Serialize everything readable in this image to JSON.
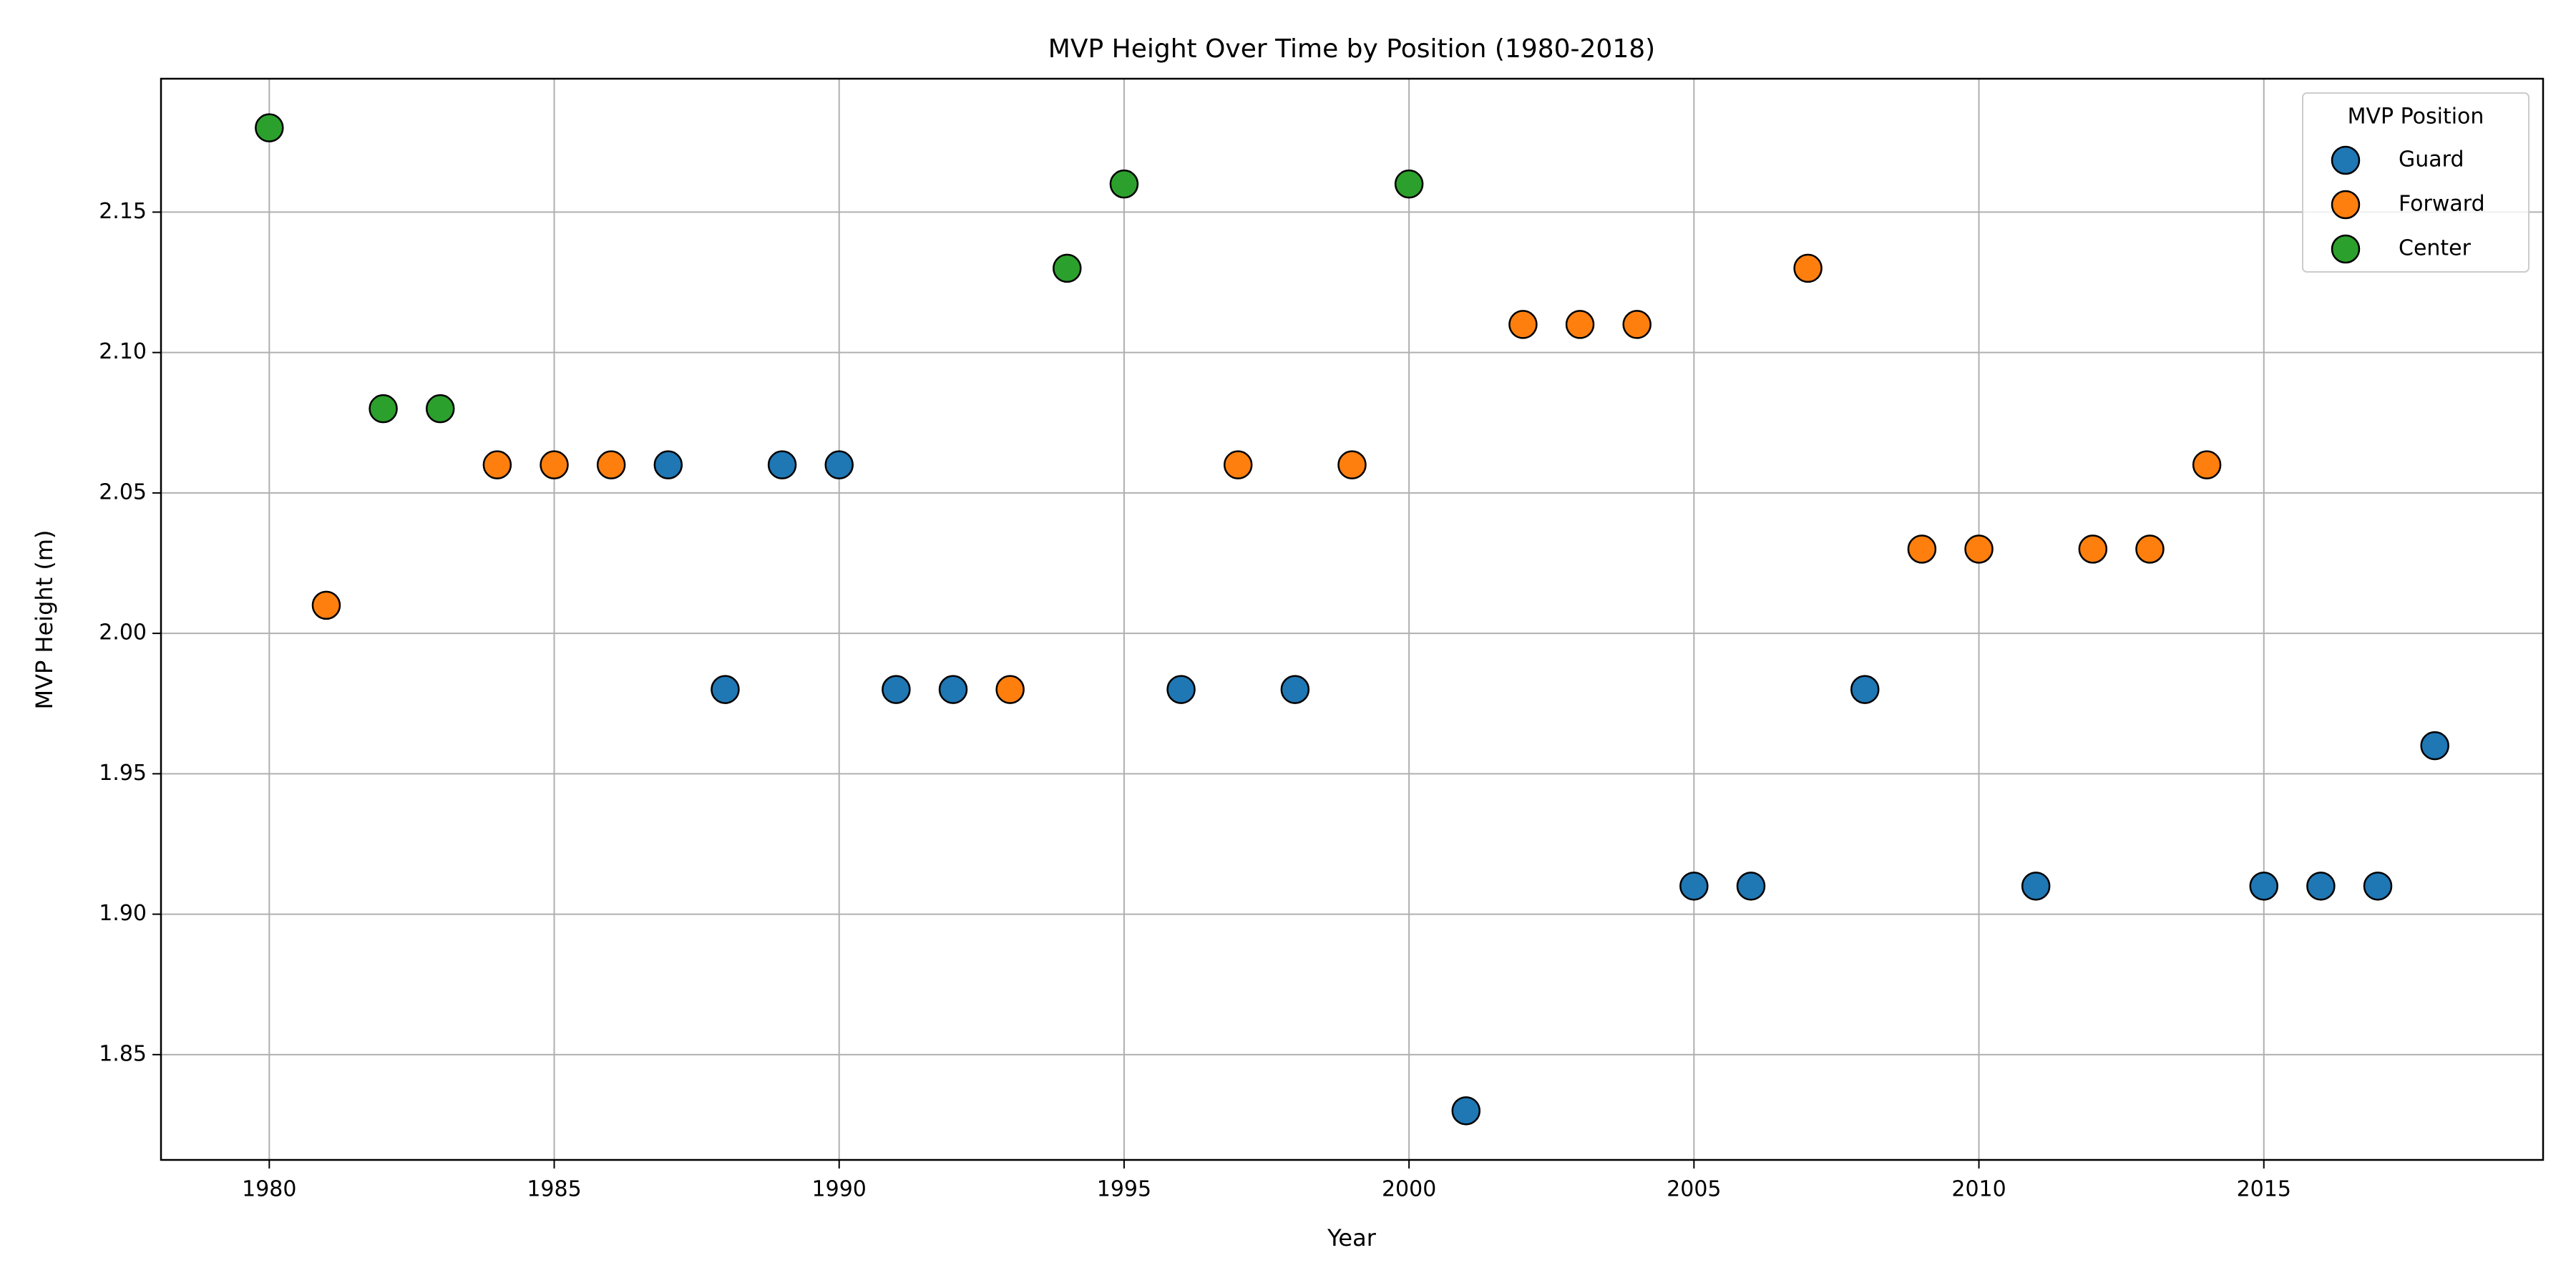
{
  "chart_data": {
    "type": "scatter",
    "title": "MVP Height Over Time by Position (1980-2018)",
    "xlabel": "Year",
    "ylabel": "MVP Height (m)",
    "xlim": [
      1978.1,
      2019.9
    ],
    "xticks": [
      1980,
      1985,
      1990,
      1995,
      2000,
      2005,
      2010,
      2015
    ],
    "ylim": [
      1.8125,
      2.1975
    ],
    "yticks": [
      1.85,
      {
        "value": 1.9,
        "label": "1.90"
      },
      1.95,
      {
        "value": 2.0,
        "label": "2.00"
      },
      2.05,
      {
        "value": 2.1,
        "label": "2.10"
      },
      2.15
    ],
    "grid": true,
    "legend_title": "MVP Position",
    "legend_position": "upper right",
    "series": [
      {
        "name": "Guard",
        "color": "#1f77b4",
        "x": [
          1987,
          1988,
          1989,
          1990,
          1991,
          1992,
          1996,
          1998,
          2001,
          2005,
          2006,
          2008,
          2011,
          2015,
          2016,
          2017,
          2018
        ],
        "values": [
          2.06,
          1.98,
          2.06,
          2.06,
          1.98,
          1.98,
          1.98,
          1.98,
          1.83,
          1.91,
          1.91,
          1.98,
          1.91,
          1.91,
          1.91,
          1.91,
          1.96
        ]
      },
      {
        "name": "Forward",
        "color": "#ff7f0e",
        "x": [
          1981,
          1984,
          1985,
          1986,
          1993,
          1997,
          1999,
          2002,
          2003,
          2004,
          2007,
          2009,
          2010,
          2012,
          2013,
          2014
        ],
        "values": [
          2.01,
          2.06,
          2.06,
          2.06,
          1.98,
          2.06,
          2.06,
          2.11,
          2.11,
          2.11,
          2.13,
          2.03,
          2.03,
          2.03,
          2.03,
          2.06
        ]
      },
      {
        "name": "Center",
        "color": "#2ca02c",
        "x": [
          1980,
          1982,
          1983,
          1994,
          1995,
          2000
        ],
        "values": [
          2.18,
          2.08,
          2.08,
          2.13,
          2.16,
          2.16
        ]
      }
    ]
  }
}
